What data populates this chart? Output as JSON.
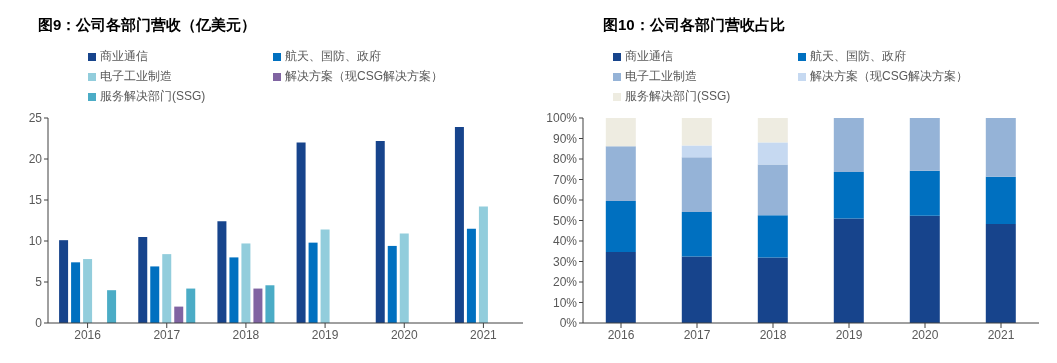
{
  "chart_data": [
    {
      "type": "bar",
      "title": "图9：公司各部门营收（亿美元）",
      "categories": [
        "2016",
        "2017",
        "2018",
        "2019",
        "2020",
        "2021"
      ],
      "series": [
        {
          "name": "商业通信",
          "color": "#17448c",
          "values": [
            10.1,
            10.5,
            12.4,
            22.0,
            22.2,
            23.9
          ]
        },
        {
          "name": "航天、国防、政府",
          "color": "#0070c0",
          "values": [
            7.4,
            6.9,
            8.0,
            9.8,
            9.4,
            11.5
          ]
        },
        {
          "name": "电子工业制造",
          "color": "#92cddc",
          "values": [
            7.8,
            8.4,
            9.7,
            11.4,
            10.9,
            14.2
          ]
        },
        {
          "name": "解决方案（现CSG解决方案）",
          "color": "#8064a2",
          "values": [
            null,
            2.0,
            4.2,
            null,
            null,
            null
          ]
        },
        {
          "name": "服务解决部门(SSG)",
          "color": "#4bacc6",
          "values": [
            4.0,
            4.2,
            4.6,
            null,
            null,
            null
          ]
        }
      ],
      "ylim": [
        0,
        25
      ],
      "yticks": [
        0,
        5,
        10,
        15,
        20,
        25
      ],
      "grid": false,
      "legend": "top"
    },
    {
      "type": "bar",
      "title": "图10：公司各部门营收占比",
      "categories": [
        "2016",
        "2017",
        "2018",
        "2019",
        "2020",
        "2021"
      ],
      "stacked": true,
      "series": [
        {
          "name": "商业通信",
          "color": "#17448c",
          "values": [
            34.6,
            32.5,
            32.0,
            51.0,
            52.3,
            48.3
          ]
        },
        {
          "name": "航天、国防、政府",
          "color": "#0070c0",
          "values": [
            24.9,
            21.6,
            20.6,
            22.7,
            22.0,
            23.0
          ]
        },
        {
          "name": "电子工业制造",
          "color": "#95b3d7",
          "values": [
            26.7,
            26.7,
            24.7,
            26.3,
            25.7,
            28.7
          ]
        },
        {
          "name": "解决方案（现CSG解决方案）",
          "color": "#c6d9f1",
          "values": [
            null,
            5.8,
            10.8,
            null,
            null,
            null
          ]
        },
        {
          "name": "服务解决部门(SSG)",
          "color": "#eeece1",
          "values": [
            13.8,
            13.4,
            11.9,
            null,
            null,
            null
          ]
        }
      ],
      "ylim": [
        0,
        100
      ],
      "yticks": [
        {
          "value": 0,
          "label": "0%"
        },
        {
          "value": 10,
          "label": "10%"
        },
        {
          "value": 20,
          "label": "20%"
        },
        {
          "value": 30,
          "label": "30%"
        },
        {
          "value": 40,
          "label": "40%"
        },
        {
          "value": 50,
          "label": "50%"
        },
        {
          "value": 60,
          "label": "60%"
        },
        {
          "value": 70,
          "label": "70%"
        },
        {
          "value": 80,
          "label": "80%"
        },
        {
          "value": 90,
          "label": "90%"
        },
        {
          "value": 100,
          "label": "100%"
        }
      ],
      "grid": false,
      "legend": "top"
    }
  ]
}
